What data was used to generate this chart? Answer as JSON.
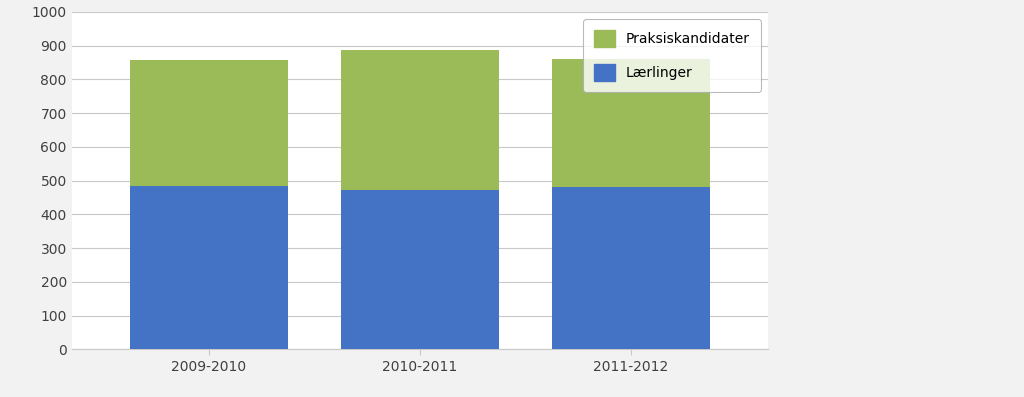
{
  "categories": [
    "2009-2010",
    "2010-2011",
    "2011-2012"
  ],
  "laerlinger": [
    483,
    473,
    480
  ],
  "praksiskandidater": [
    375,
    413,
    380
  ],
  "laerlinger_color": "#4472C4",
  "praksiskandidater_color": "#9BBB59",
  "ylim": [
    0,
    1000
  ],
  "yticks": [
    0,
    100,
    200,
    300,
    400,
    500,
    600,
    700,
    800,
    900,
    1000
  ],
  "legend_labels": [
    "Praksiskandidater",
    "Lærlinger"
  ],
  "background_color": "#F2F2F2",
  "plot_background_color": "#FFFFFF",
  "bar_width": 0.75,
  "grid_color": "#C8C8C8",
  "text_color": "#404040"
}
